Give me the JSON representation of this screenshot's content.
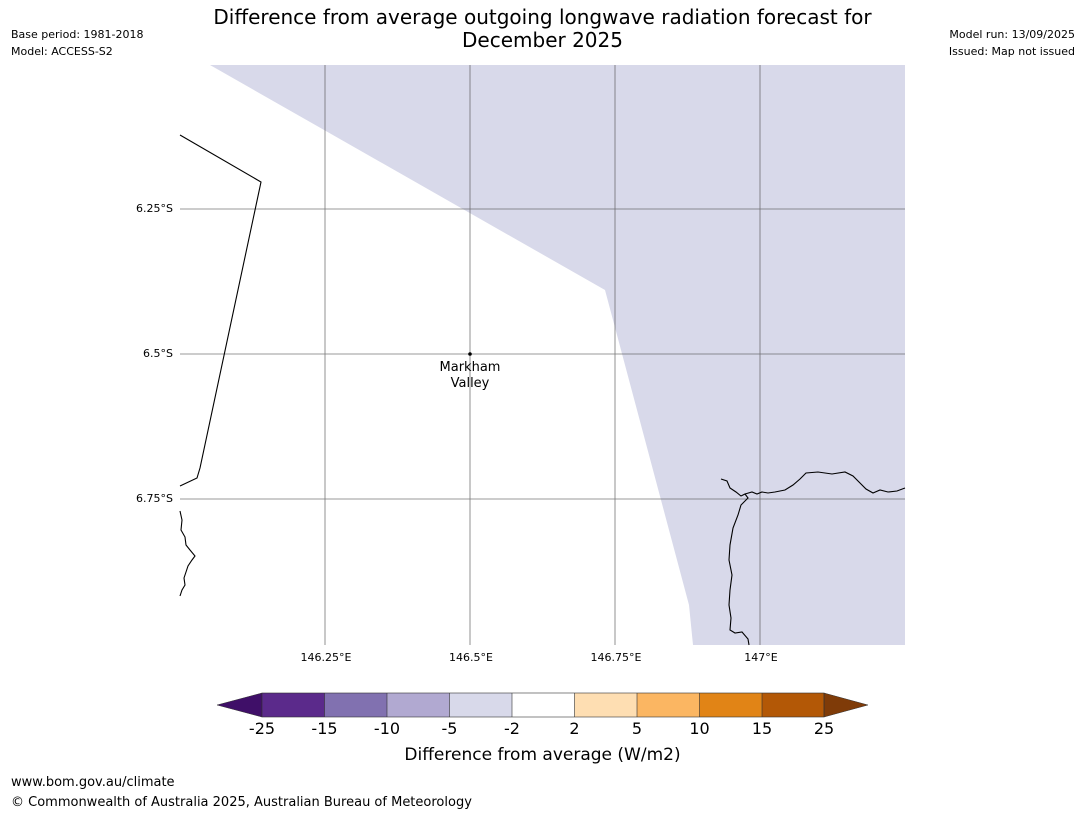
{
  "title_line1": "Difference from average outgoing longwave radiation forecast for",
  "title_line2": "December 2025",
  "meta_left": {
    "base_period": "Base period: 1981-2018",
    "model": "Model: ACCESS-S2"
  },
  "meta_right": {
    "model_run": "Model run: 13/09/2025",
    "issued": "Issued: Map not issued"
  },
  "map": {
    "latitudes": [
      "6.25°S",
      "6.5°S",
      "6.75°S"
    ],
    "longitudes": [
      "146.25°E",
      "146.5°E",
      "146.75°E",
      "147°E"
    ],
    "place": {
      "name_line1": "Markham",
      "name_line2": "Valley"
    },
    "shaded_category": "-5 to -2",
    "shade_color": "#d8d9ea"
  },
  "colorbar": {
    "ticks": [
      "-25",
      "-15",
      "-10",
      "-5",
      "-2",
      "2",
      "5",
      "10",
      "15",
      "25"
    ],
    "colors": [
      "#3f0f68",
      "#5b2a8b",
      "#8171b0",
      "#b1a9d1",
      "#d8d9ea",
      "#ffffff",
      "#fedeb2",
      "#fbb662",
      "#e18416",
      "#b35806",
      "#7f3b08"
    ],
    "label": "Difference from average (W/m2)"
  },
  "footer": {
    "url": "www.bom.gov.au/climate",
    "copyright": "© Commonwealth of Australia 2025, Australian Bureau of Meteorology"
  }
}
